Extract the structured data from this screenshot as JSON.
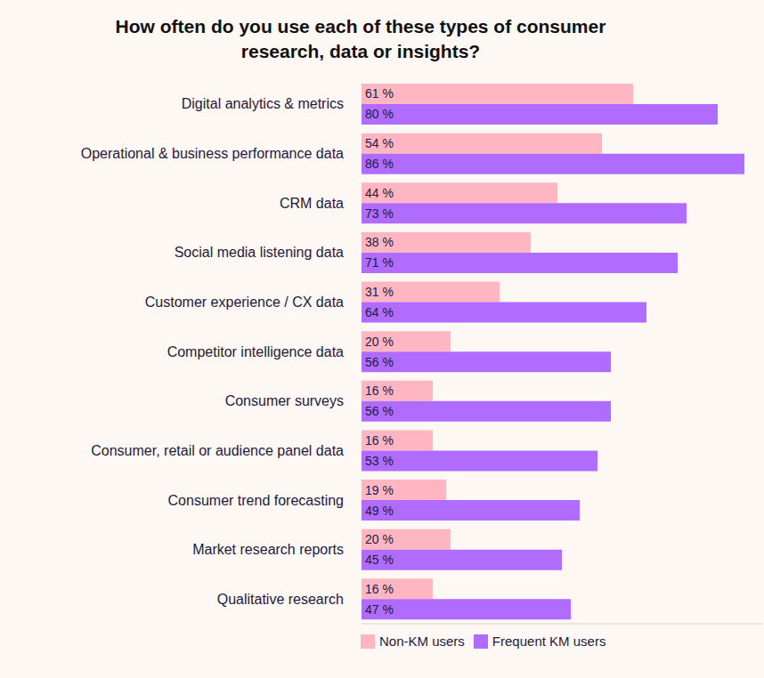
{
  "chart_data": {
    "type": "bar",
    "orientation": "horizontal",
    "title": "How often do you use each of these types of consumer research, data or insights?",
    "categories": [
      "Digital analytics & metrics",
      "Operational & business performance data",
      "CRM data",
      "Social media listening data",
      "Customer experience / CX data",
      "Competitor intelligence data",
      "Consumer surveys",
      "Consumer, retail or audience panel data",
      "Consumer trend forecasting",
      "Market research reports",
      "Qualitative research"
    ],
    "series": [
      {
        "name": "Non-KM users",
        "color": "#ffb6c3",
        "values": [
          61,
          54,
          44,
          38,
          31,
          20,
          16,
          16,
          19,
          20,
          16
        ],
        "value_labels": [
          "61 %",
          "54 %",
          "44 %",
          "38 %",
          "31 %",
          "20 %",
          "16 %",
          "16 %",
          "19 %",
          "20 %",
          "16 %"
        ]
      },
      {
        "name": "Frequent KM users",
        "color": "#b06cff",
        "values": [
          80,
          86,
          73,
          71,
          64,
          56,
          56,
          53,
          49,
          45,
          47
        ],
        "value_labels": [
          "80 %",
          "86 %",
          "73 %",
          "71 %",
          "64 %",
          "56 %",
          "56 %",
          "53 %",
          "49 %",
          "45 %",
          "47 %"
        ]
      }
    ],
    "xlim": [
      0,
      90
    ],
    "xticks": [],
    "tick_labels": "y",
    "data_labels": true,
    "grid": false,
    "legend": "bottom"
  }
}
